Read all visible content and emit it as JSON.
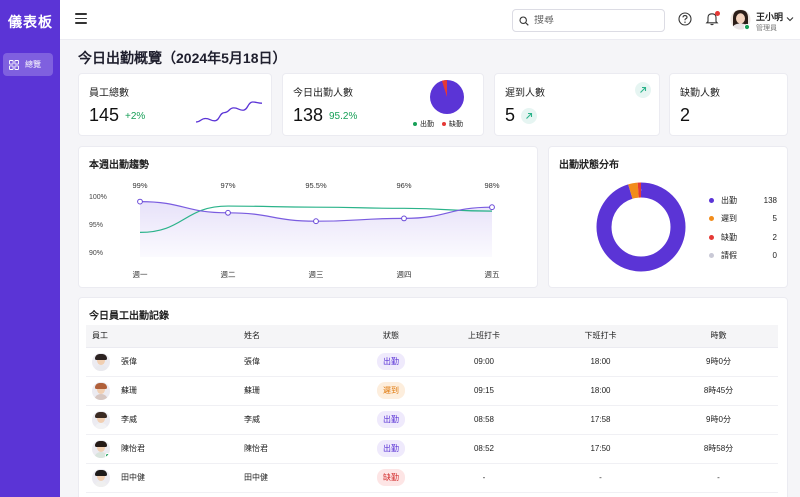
{
  "sidebar": {
    "brand": "儀表板",
    "items": [
      {
        "label": "總覽",
        "icon": "grid-icon"
      }
    ]
  },
  "header": {
    "search_placeholder": "搜尋",
    "user": {
      "name": "王小明",
      "role": "管理員"
    }
  },
  "page": {
    "title": "今日出勤概覽（2024年5月18日）"
  },
  "kpis": {
    "total": {
      "label": "員工總數",
      "value": "145",
      "delta": "+2%",
      "sparkline": [
        30,
        33,
        31,
        38,
        42,
        40,
        47,
        46
      ]
    },
    "present": {
      "label": "今日出勤人數",
      "value": "138",
      "rate": "95.2%",
      "legend_present": "出勤",
      "legend_absent": "缺勤"
    },
    "late": {
      "label": "遲到人數",
      "value": "5"
    },
    "absent": {
      "label": "缺勤人數",
      "value": "2"
    }
  },
  "colors": {
    "primary": "#5b34d6",
    "present": "#5b34d6",
    "late": "#f28c1b",
    "leave": "#18a058",
    "absent": "#e53935",
    "other": "#c9c9d6",
    "trend": "#2bb38a"
  },
  "trend": {
    "title": "本週出勤趨勢",
    "chart_data": {
      "type": "line",
      "categories": [
        "週一",
        "週二",
        "週三",
        "週四",
        "週五"
      ],
      "series": [
        {
          "values": [
            99,
            97,
            95.5,
            96,
            98
          ],
          "labels": [
            "99%",
            "97%",
            "95.5%",
            "96%",
            "98%"
          ]
        },
        {
          "values": [
            93.5,
            98.2,
            98,
            97.8,
            97.3
          ]
        }
      ],
      "ylim": [
        90,
        100
      ],
      "yticks": [
        "100%",
        "95%",
        "90%"
      ]
    }
  },
  "distribution": {
    "title": "出勤狀態分布",
    "chart_data": {
      "type": "pie",
      "items": [
        {
          "name": "出勤",
          "value": 138,
          "color": "#5b34d6"
        },
        {
          "name": "遲到",
          "value": 5,
          "color": "#f28c1b"
        },
        {
          "name": "缺勤",
          "value": 2,
          "color": "#e53935"
        },
        {
          "name": "請假",
          "value": 0,
          "color": "#c9c9d6"
        }
      ]
    }
  },
  "table": {
    "title": "今日員工出勤記錄",
    "headers": [
      "員工",
      "姓名",
      "狀態",
      "上班打卡",
      "下班打卡",
      "時數"
    ],
    "rows": [
      {
        "employee": "張偉",
        "name": "張偉",
        "status": "出勤",
        "in": "09:00",
        "out": "18:00",
        "hours": "9時0分"
      },
      {
        "employee": "蘇珊",
        "name": "蘇珊",
        "status": "遲到",
        "in": "09:15",
        "out": "18:00",
        "hours": "8時45分"
      },
      {
        "employee": "李威",
        "name": "李威",
        "status": "出勤",
        "in": "08:58",
        "out": "17:58",
        "hours": "9時0分"
      },
      {
        "employee": "陳怡君",
        "name": "陳怡君",
        "status": "出勤",
        "in": "08:52",
        "out": "17:50",
        "hours": "8時58分"
      },
      {
        "employee": "田中健",
        "name": "田中健",
        "status": "缺勤",
        "in": "-",
        "out": "-",
        "hours": "-"
      }
    ]
  }
}
